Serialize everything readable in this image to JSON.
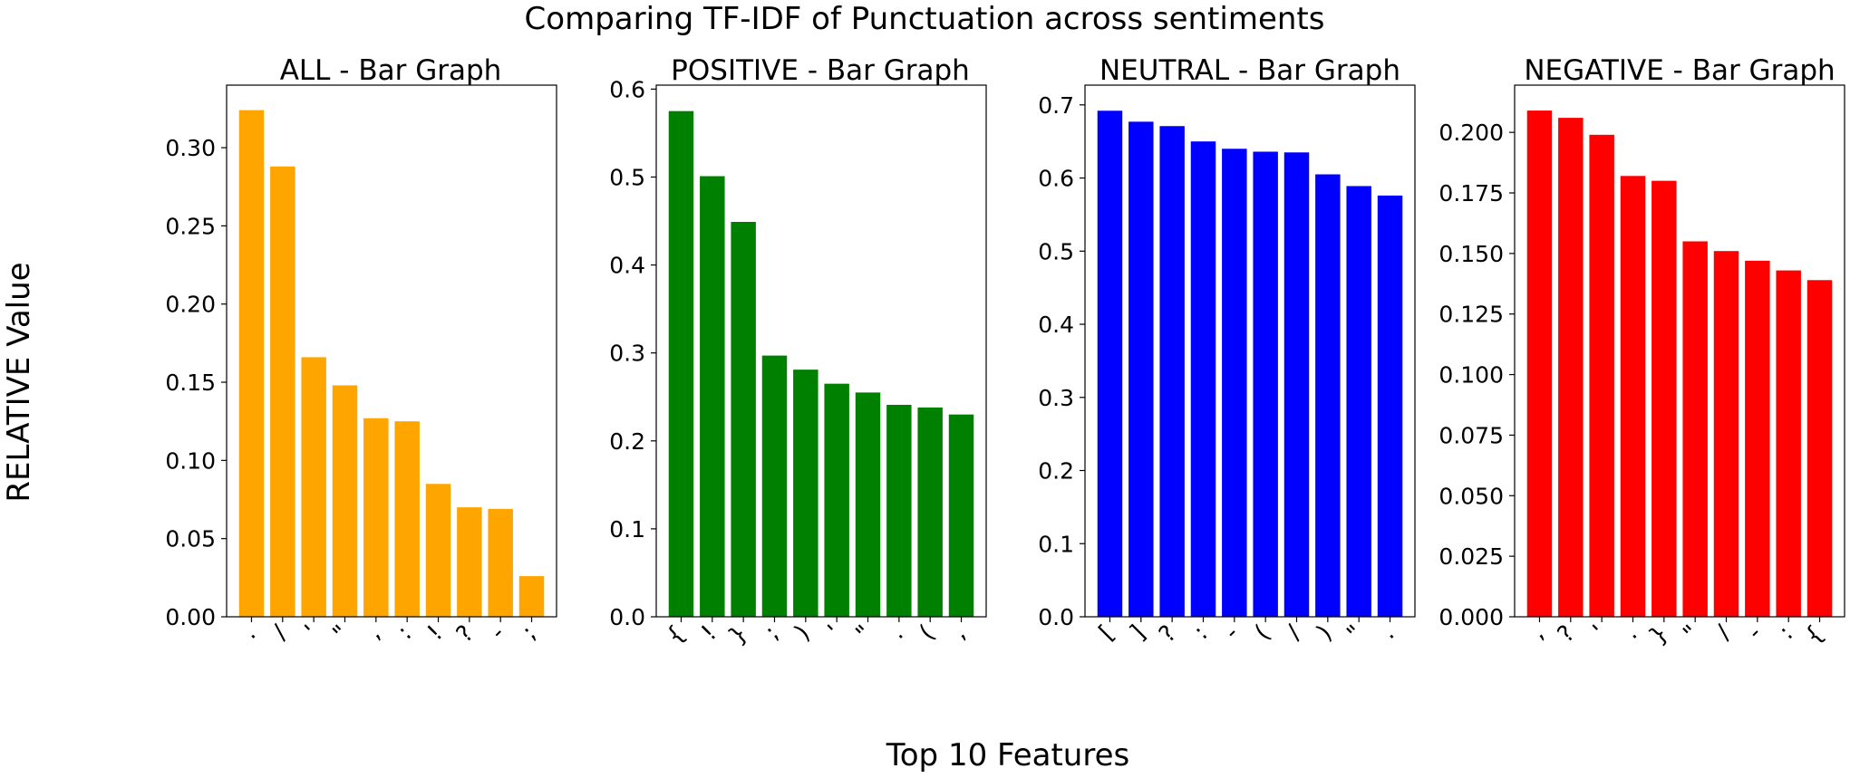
{
  "figure": {
    "title": "Comparing TF-IDF of Punctuation across sentiments",
    "xlabel": "Top 10 Features",
    "ylabel": "RELATIVE Value"
  },
  "chart_data": [
    {
      "type": "bar",
      "title": "ALL - Bar Graph",
      "color": "#ffa500",
      "categories": [
        ".",
        "/",
        "'",
        "\"",
        ",",
        ":",
        "!",
        "?",
        "-",
        ";"
      ],
      "values": [
        0.324,
        0.288,
        0.166,
        0.148,
        0.127,
        0.125,
        0.085,
        0.07,
        0.069,
        0.026
      ],
      "ylim": [
        0,
        0.34
      ],
      "yticks": [
        0.0,
        0.05,
        0.1,
        0.15,
        0.2,
        0.25,
        0.3
      ],
      "ytick_labels": [
        "0.00",
        "0.05",
        "0.10",
        "0.15",
        "0.20",
        "0.25",
        "0.30"
      ]
    },
    {
      "type": "bar",
      "title": "POSITIVE - Bar Graph",
      "color": "#008000",
      "categories": [
        "{",
        "!",
        "}",
        ";",
        ")",
        "'",
        "\"",
        ".",
        "(",
        ","
      ],
      "values": [
        0.575,
        0.501,
        0.449,
        0.297,
        0.281,
        0.265,
        0.255,
        0.241,
        0.238,
        0.23
      ],
      "ylim": [
        0,
        0.6045
      ],
      "yticks": [
        0.0,
        0.1,
        0.2,
        0.3,
        0.4,
        0.5,
        0.6
      ],
      "ytick_labels": [
        "0.0",
        "0.1",
        "0.2",
        "0.3",
        "0.4",
        "0.5",
        "0.6"
      ]
    },
    {
      "type": "bar",
      "title": "NEUTRAL - Bar Graph",
      "color": "#0000ff",
      "categories": [
        "[",
        "]",
        "?",
        ":",
        "-",
        "(",
        "/",
        ")",
        "\"",
        "."
      ],
      "values": [
        0.692,
        0.677,
        0.671,
        0.65,
        0.64,
        0.636,
        0.635,
        0.605,
        0.589,
        0.576
      ],
      "ylim": [
        0,
        0.727
      ],
      "yticks": [
        0.0,
        0.1,
        0.2,
        0.3,
        0.4,
        0.5,
        0.6,
        0.7
      ],
      "ytick_labels": [
        "0.0",
        "0.1",
        "0.2",
        "0.3",
        "0.4",
        "0.5",
        "0.6",
        "0.7"
      ]
    },
    {
      "type": "bar",
      "title": "NEGATIVE - Bar Graph",
      "color": "#ff0000",
      "categories": [
        ",",
        "?",
        "'",
        ".",
        "}",
        "\"",
        "/",
        "-",
        ":",
        "{"
      ],
      "values": [
        0.209,
        0.206,
        0.199,
        0.182,
        0.18,
        0.155,
        0.151,
        0.147,
        0.143,
        0.139
      ],
      "ylim": [
        0,
        0.2195
      ],
      "yticks": [
        0.0,
        0.025,
        0.05,
        0.075,
        0.1,
        0.125,
        0.15,
        0.175,
        0.2
      ],
      "ytick_labels": [
        "0.000",
        "0.025",
        "0.050",
        "0.075",
        "0.100",
        "0.125",
        "0.150",
        "0.175",
        "0.200"
      ]
    }
  ]
}
